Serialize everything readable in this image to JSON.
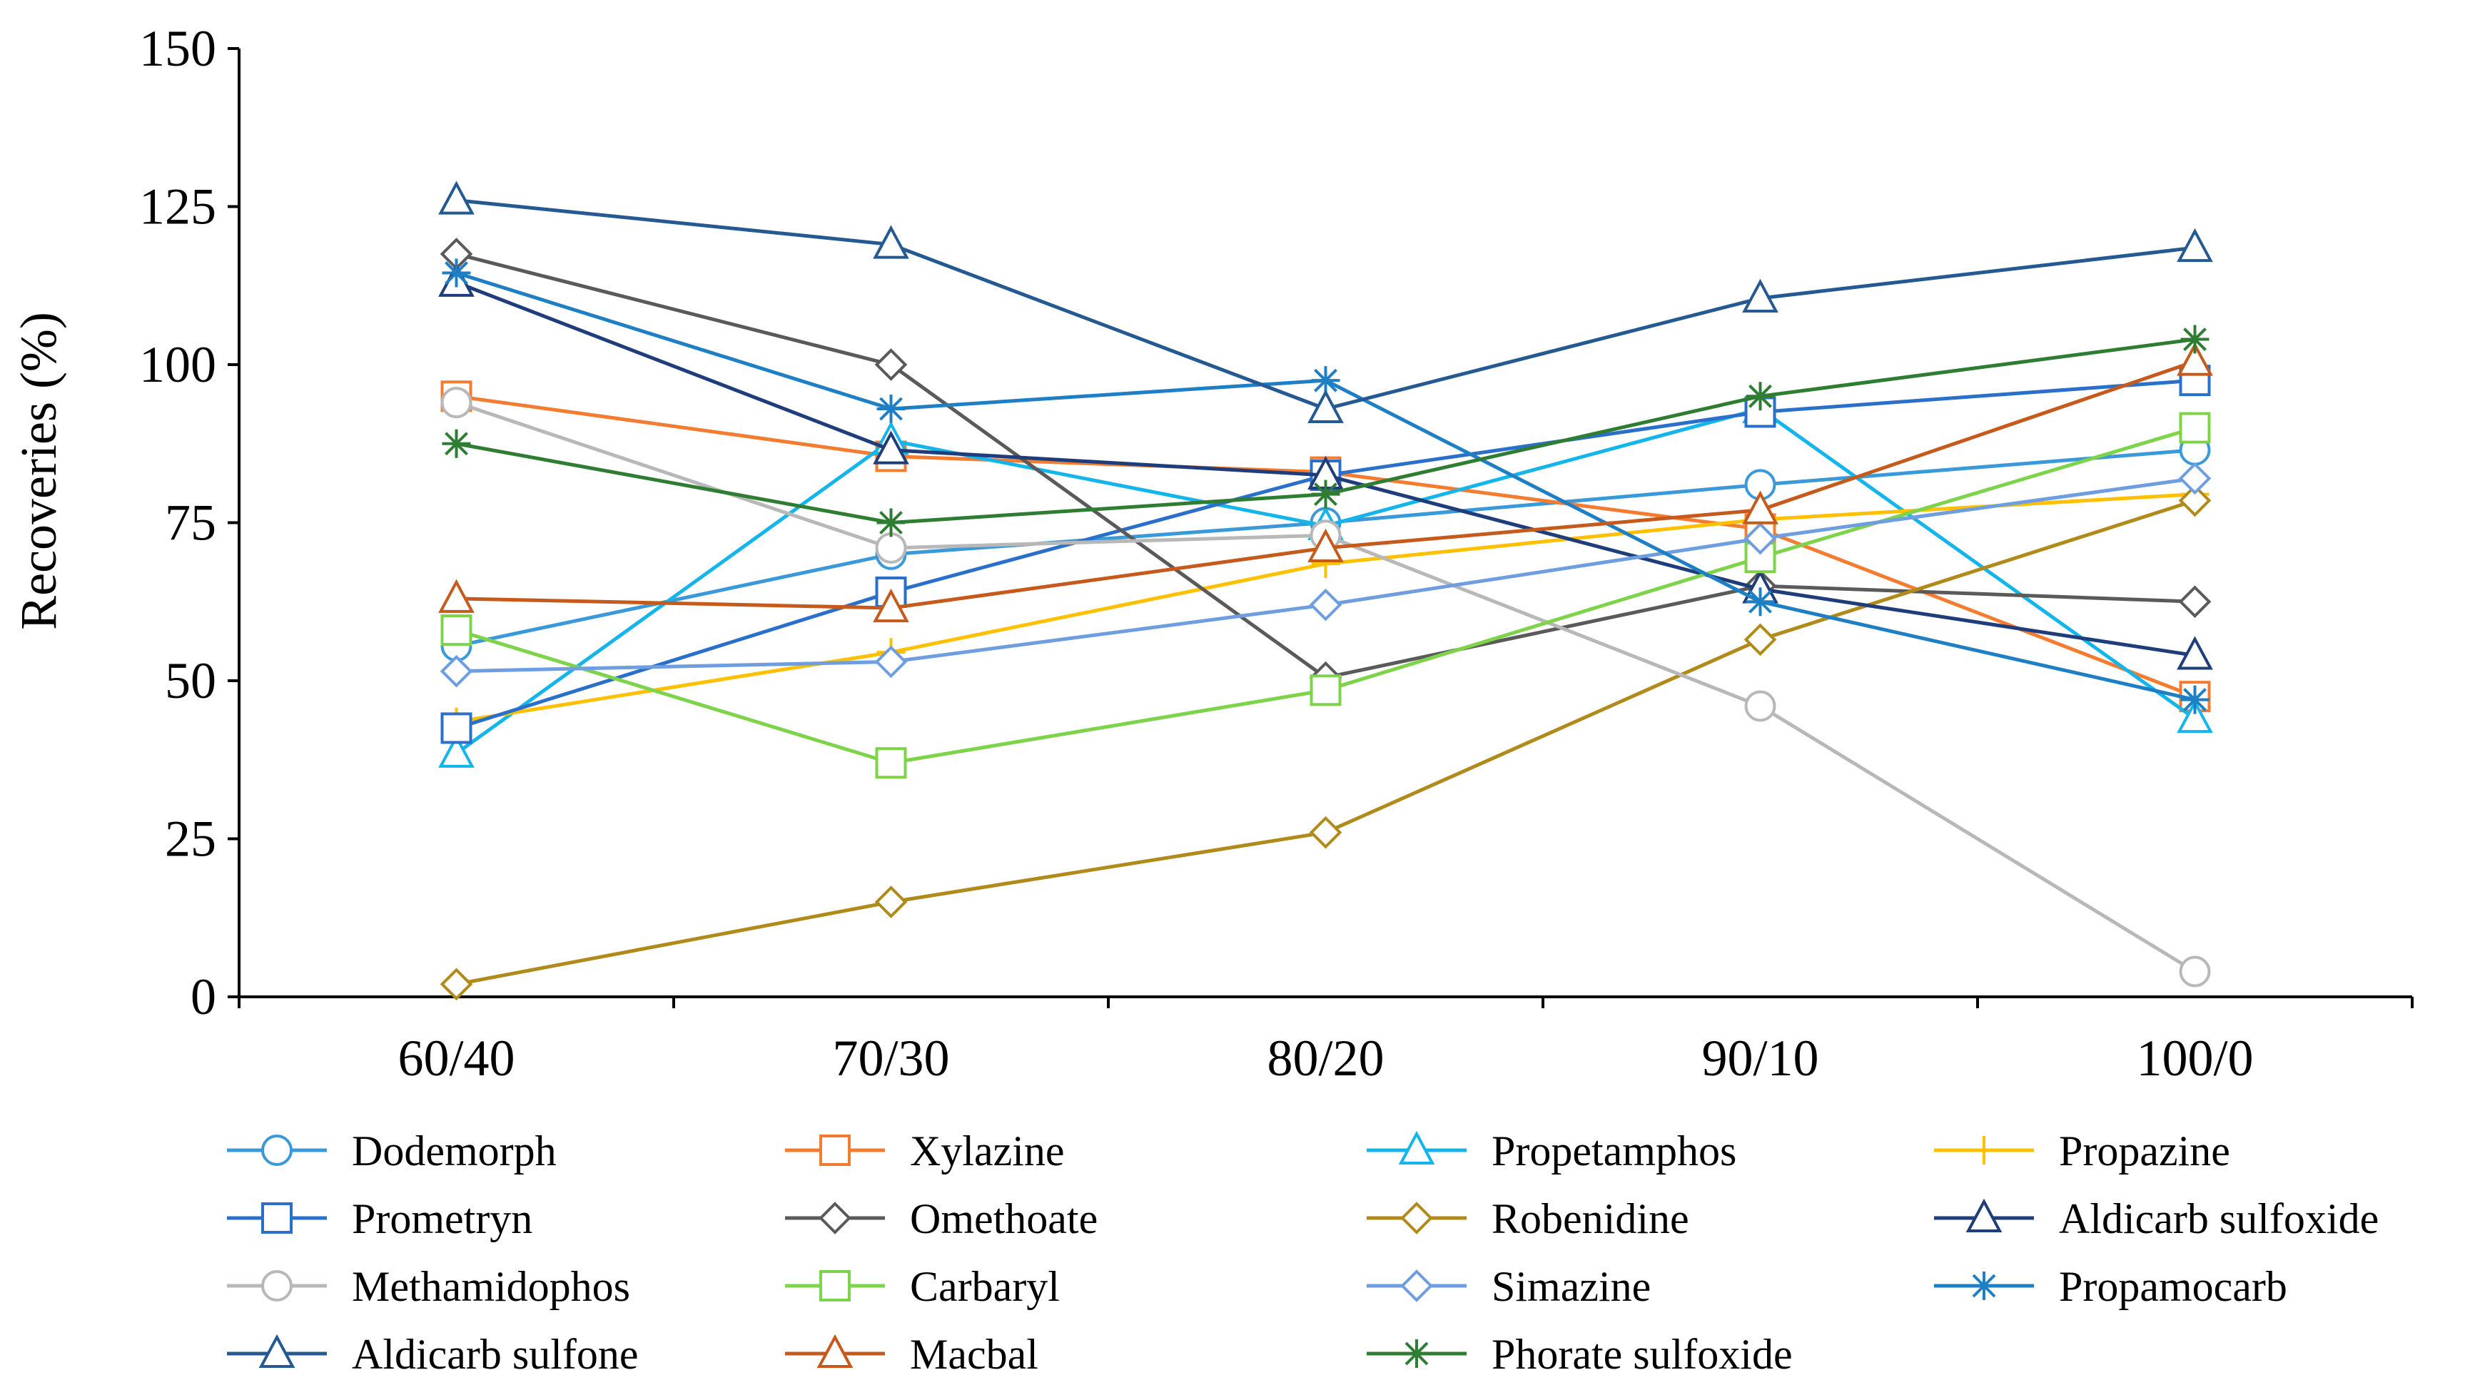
{
  "chart_data": {
    "type": "line",
    "title": "",
    "xlabel": "",
    "ylabel": "Recoveries (%)",
    "categories": [
      "60/40",
      "70/30",
      "80/20",
      "90/10",
      "100/0"
    ],
    "ylim": [
      0,
      150
    ],
    "yticks": [
      0,
      25,
      50,
      75,
      100,
      125,
      150
    ],
    "grid": false,
    "legend_position": "bottom",
    "series": [
      {
        "name": "Dodemorph",
        "color": "#3a9ad9",
        "marker": "circle",
        "values": [
          55.5,
          70,
          75,
          81,
          86.5
        ]
      },
      {
        "name": "Xylazine",
        "color": "#f47c30",
        "marker": "square",
        "values": [
          95,
          85.5,
          83,
          74,
          47.5
        ]
      },
      {
        "name": "Propetamphos",
        "color": "#13b5ea",
        "marker": "triangle",
        "values": [
          38.5,
          88,
          74.5,
          93,
          44
        ]
      },
      {
        "name": "Propazine",
        "color": "#ffc000",
        "marker": "plus",
        "values": [
          43.5,
          54.5,
          68.5,
          75.5,
          79.5
        ]
      },
      {
        "name": "Prometryn",
        "color": "#2a6fc9",
        "marker": "square",
        "values": [
          42.5,
          64,
          82.5,
          92.5,
          97.5
        ]
      },
      {
        "name": "Omethoate",
        "color": "#5a5a5a",
        "marker": "diamond",
        "values": [
          117.5,
          100,
          50.5,
          65,
          62.5
        ]
      },
      {
        "name": "Robenidine",
        "color": "#b08a1a",
        "marker": "diamond",
        "values": [
          2,
          15,
          26,
          56.5,
          78.5
        ]
      },
      {
        "name": "Aldicarb sulfoxide",
        "color": "#1f3d7a",
        "marker": "triangle",
        "values": [
          113,
          86.5,
          82.5,
          64.5,
          54
        ]
      },
      {
        "name": "Methamidophos",
        "color": "#b8b8b8",
        "marker": "circle",
        "values": [
          94,
          71,
          73,
          46,
          4
        ]
      },
      {
        "name": "Carbaryl",
        "color": "#7dd34a",
        "marker": "square",
        "values": [
          58,
          37,
          48.5,
          69.5,
          90
        ]
      },
      {
        "name": "Simazine",
        "color": "#6e9ee0",
        "marker": "diamond",
        "values": [
          51.5,
          53,
          62,
          72.5,
          82
        ]
      },
      {
        "name": "Propamocarb",
        "color": "#1f7fc4",
        "marker": "asterisk",
        "values": [
          114.5,
          93,
          97.5,
          62.5,
          47
        ]
      },
      {
        "name": "Aldicarb sulfone",
        "color": "#245a91",
        "marker": "triangle",
        "values": [
          126,
          119,
          93,
          110.5,
          118.5
        ]
      },
      {
        "name": "Macbal",
        "color": "#c55a1c",
        "marker": "triangle",
        "values": [
          63,
          61.5,
          71,
          77,
          100.5
        ]
      },
      {
        "name": "Phorate sulfoxide",
        "color": "#2e7d32",
        "marker": "asterisk",
        "values": [
          87.5,
          75,
          79.5,
          95,
          104
        ]
      }
    ]
  }
}
